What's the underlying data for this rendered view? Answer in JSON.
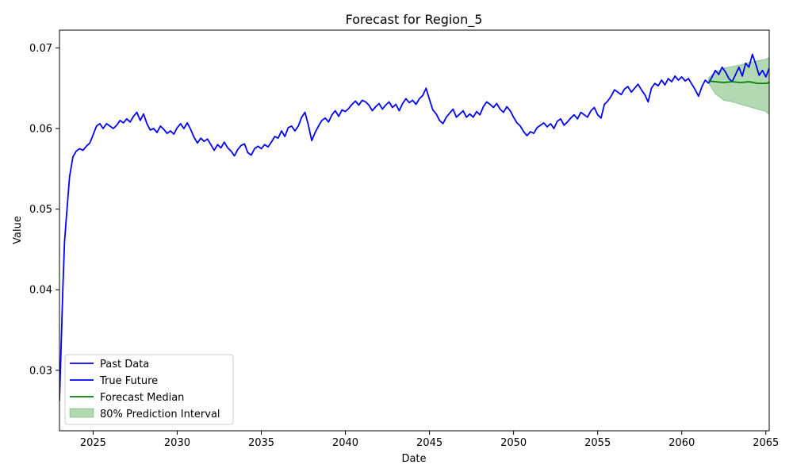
{
  "chart_data": {
    "type": "line",
    "title": "Forecast for Region_5",
    "xlabel": "Date",
    "ylabel": "Value",
    "xlim": [
      2023.0,
      2065.2
    ],
    "ylim": [
      0.0225,
      0.0722
    ],
    "x_ticks": [
      2025,
      2030,
      2035,
      2040,
      2045,
      2050,
      2055,
      2060,
      2065
    ],
    "y_ticks": [
      0.03,
      0.04,
      0.05,
      0.06,
      0.07
    ],
    "y_tick_labels": [
      "0.03",
      "0.04",
      "0.05",
      "0.06",
      "0.07"
    ],
    "legend_position": "lower-left",
    "series": [
      {
        "name": "Past Data",
        "color": "#0000ff",
        "style": "line",
        "points": [
          [
            2023.0,
            0.0262
          ],
          [
            2023.1,
            0.033
          ],
          [
            2023.2,
            0.04
          ],
          [
            2023.3,
            0.046
          ],
          [
            2023.45,
            0.05
          ],
          [
            2023.6,
            0.054
          ],
          [
            2023.8,
            0.0565
          ],
          [
            2024.0,
            0.0572
          ],
          [
            2024.2,
            0.0575
          ],
          [
            2024.4,
            0.0573
          ],
          [
            2024.6,
            0.0578
          ],
          [
            2024.8,
            0.0582
          ],
          [
            2025.0,
            0.0592
          ],
          [
            2025.2,
            0.0603
          ],
          [
            2025.4,
            0.0606
          ],
          [
            2025.6,
            0.06
          ],
          [
            2025.8,
            0.0606
          ],
          [
            2026.0,
            0.0603
          ],
          [
            2026.2,
            0.06
          ],
          [
            2026.4,
            0.0604
          ],
          [
            2026.6,
            0.061
          ],
          [
            2026.8,
            0.0607
          ],
          [
            2027.0,
            0.0612
          ],
          [
            2027.2,
            0.0608
          ],
          [
            2027.4,
            0.0615
          ],
          [
            2027.6,
            0.062
          ],
          [
            2027.8,
            0.061
          ],
          [
            2028.0,
            0.0618
          ],
          [
            2028.2,
            0.0606
          ],
          [
            2028.4,
            0.0598
          ],
          [
            2028.6,
            0.06
          ],
          [
            2028.8,
            0.0595
          ],
          [
            2029.0,
            0.0603
          ],
          [
            2029.2,
            0.0599
          ],
          [
            2029.4,
            0.0594
          ],
          [
            2029.6,
            0.0597
          ],
          [
            2029.8,
            0.0593
          ],
          [
            2030.0,
            0.0601
          ],
          [
            2030.2,
            0.0606
          ],
          [
            2030.4,
            0.06
          ],
          [
            2030.6,
            0.0607
          ],
          [
            2030.8,
            0.0599
          ],
          [
            2031.0,
            0.0589
          ],
          [
            2031.2,
            0.0582
          ],
          [
            2031.4,
            0.0588
          ],
          [
            2031.6,
            0.0584
          ],
          [
            2031.8,
            0.0587
          ],
          [
            2032.0,
            0.058
          ],
          [
            2032.2,
            0.0573
          ],
          [
            2032.4,
            0.058
          ],
          [
            2032.6,
            0.0576
          ],
          [
            2032.8,
            0.0583
          ],
          [
            2033.0,
            0.0576
          ],
          [
            2033.2,
            0.0572
          ],
          [
            2033.4,
            0.0566
          ],
          [
            2033.6,
            0.0574
          ],
          [
            2033.8,
            0.0579
          ],
          [
            2034.0,
            0.0581
          ],
          [
            2034.2,
            0.057
          ],
          [
            2034.4,
            0.0567
          ],
          [
            2034.6,
            0.0575
          ],
          [
            2034.8,
            0.0578
          ],
          [
            2035.0,
            0.0575
          ],
          [
            2035.2,
            0.058
          ],
          [
            2035.4,
            0.0577
          ],
          [
            2035.6,
            0.0583
          ],
          [
            2035.8,
            0.059
          ],
          [
            2036.0,
            0.0588
          ],
          [
            2036.2,
            0.0597
          ],
          [
            2036.4,
            0.059
          ],
          [
            2036.6,
            0.0601
          ],
          [
            2036.8,
            0.0603
          ],
          [
            2037.0,
            0.0597
          ],
          [
            2037.2,
            0.0603
          ],
          [
            2037.4,
            0.0614
          ],
          [
            2037.6,
            0.062
          ],
          [
            2037.8,
            0.0604
          ],
          [
            2038.0,
            0.0585
          ],
          [
            2038.2,
            0.0595
          ],
          [
            2038.4,
            0.0603
          ],
          [
            2038.6,
            0.061
          ],
          [
            2038.8,
            0.0613
          ],
          [
            2039.0,
            0.0608
          ],
          [
            2039.2,
            0.0617
          ],
          [
            2039.4,
            0.0622
          ],
          [
            2039.6,
            0.0615
          ],
          [
            2039.8,
            0.0623
          ],
          [
            2040.0,
            0.0621
          ],
          [
            2040.2,
            0.0625
          ],
          [
            2040.4,
            0.063
          ],
          [
            2040.6,
            0.0634
          ],
          [
            2040.8,
            0.0629
          ],
          [
            2041.0,
            0.0635
          ],
          [
            2041.2,
            0.0633
          ],
          [
            2041.4,
            0.0629
          ],
          [
            2041.6,
            0.0622
          ],
          [
            2041.8,
            0.0627
          ],
          [
            2042.0,
            0.0631
          ],
          [
            2042.2,
            0.0624
          ],
          [
            2042.4,
            0.0629
          ],
          [
            2042.6,
            0.0633
          ],
          [
            2042.8,
            0.0626
          ],
          [
            2043.0,
            0.063
          ],
          [
            2043.2,
            0.0622
          ],
          [
            2043.4,
            0.0631
          ],
          [
            2043.6,
            0.0637
          ],
          [
            2043.8,
            0.0632
          ],
          [
            2044.0,
            0.0635
          ],
          [
            2044.2,
            0.063
          ],
          [
            2044.4,
            0.0637
          ],
          [
            2044.6,
            0.0641
          ],
          [
            2044.8,
            0.065
          ],
          [
            2045.0,
            0.0636
          ],
          [
            2045.2,
            0.0623
          ],
          [
            2045.4,
            0.0618
          ],
          [
            2045.6,
            0.061
          ],
          [
            2045.8,
            0.0606
          ],
          [
            2046.0,
            0.0614
          ],
          [
            2046.2,
            0.0619
          ],
          [
            2046.4,
            0.0624
          ],
          [
            2046.6,
            0.0614
          ],
          [
            2046.8,
            0.0618
          ],
          [
            2047.0,
            0.0622
          ],
          [
            2047.2,
            0.0614
          ],
          [
            2047.4,
            0.0618
          ],
          [
            2047.6,
            0.0614
          ],
          [
            2047.8,
            0.0621
          ],
          [
            2048.0,
            0.0617
          ],
          [
            2048.2,
            0.0627
          ],
          [
            2048.4,
            0.0633
          ],
          [
            2048.6,
            0.063
          ],
          [
            2048.8,
            0.0626
          ],
          [
            2049.0,
            0.0631
          ],
          [
            2049.2,
            0.0624
          ],
          [
            2049.4,
            0.062
          ],
          [
            2049.6,
            0.0627
          ],
          [
            2049.8,
            0.0622
          ],
          [
            2050.0,
            0.0614
          ],
          [
            2050.2,
            0.0607
          ],
          [
            2050.4,
            0.0603
          ],
          [
            2050.6,
            0.0596
          ],
          [
            2050.8,
            0.0591
          ],
          [
            2051.0,
            0.0596
          ],
          [
            2051.2,
            0.0594
          ],
          [
            2051.4,
            0.0601
          ],
          [
            2051.6,
            0.0604
          ],
          [
            2051.8,
            0.0607
          ],
          [
            2052.0,
            0.0602
          ],
          [
            2052.2,
            0.0606
          ],
          [
            2052.4,
            0.06
          ],
          [
            2052.6,
            0.0609
          ],
          [
            2052.8,
            0.0612
          ],
          [
            2053.0,
            0.0604
          ],
          [
            2053.2,
            0.0608
          ],
          [
            2053.4,
            0.0613
          ],
          [
            2053.6,
            0.0617
          ],
          [
            2053.8,
            0.0612
          ],
          [
            2054.0,
            0.062
          ],
          [
            2054.2,
            0.0617
          ],
          [
            2054.4,
            0.0614
          ],
          [
            2054.6,
            0.0622
          ],
          [
            2054.8,
            0.0626
          ],
          [
            2055.0,
            0.0617
          ],
          [
            2055.2,
            0.0613
          ],
          [
            2055.4,
            0.063
          ],
          [
            2055.6,
            0.0634
          ],
          [
            2055.8,
            0.064
          ],
          [
            2056.0,
            0.0648
          ],
          [
            2056.2,
            0.0645
          ],
          [
            2056.4,
            0.0642
          ],
          [
            2056.6,
            0.0649
          ],
          [
            2056.8,
            0.0652
          ],
          [
            2057.0,
            0.0645
          ],
          [
            2057.2,
            0.065
          ],
          [
            2057.4,
            0.0655
          ],
          [
            2057.6,
            0.0648
          ],
          [
            2057.8,
            0.0642
          ],
          [
            2058.0,
            0.0633
          ],
          [
            2058.2,
            0.065
          ],
          [
            2058.4,
            0.0656
          ],
          [
            2058.6,
            0.0653
          ],
          [
            2058.8,
            0.066
          ],
          [
            2059.0,
            0.0654
          ],
          [
            2059.2,
            0.0662
          ],
          [
            2059.4,
            0.0658
          ],
          [
            2059.6,
            0.0665
          ],
          [
            2059.8,
            0.066
          ],
          [
            2060.0,
            0.0664
          ],
          [
            2060.2,
            0.0659
          ],
          [
            2060.4,
            0.0662
          ],
          [
            2060.6,
            0.0655
          ],
          [
            2060.8,
            0.0648
          ],
          [
            2061.0,
            0.064
          ],
          [
            2061.2,
            0.0652
          ],
          [
            2061.4,
            0.066
          ],
          [
            2061.6,
            0.0656
          ]
        ]
      },
      {
        "name": "True Future",
        "color": "#0000ff",
        "style": "line",
        "points": [
          [
            2061.6,
            0.0656
          ],
          [
            2061.8,
            0.0664
          ],
          [
            2062.0,
            0.0672
          ],
          [
            2062.2,
            0.0667
          ],
          [
            2062.4,
            0.0676
          ],
          [
            2062.6,
            0.067
          ],
          [
            2062.8,
            0.0662
          ],
          [
            2063.0,
            0.0658
          ],
          [
            2063.2,
            0.0667
          ],
          [
            2063.4,
            0.0676
          ],
          [
            2063.6,
            0.0665
          ],
          [
            2063.8,
            0.0681
          ],
          [
            2064.0,
            0.0676
          ],
          [
            2064.2,
            0.0692
          ],
          [
            2064.4,
            0.068
          ],
          [
            2064.6,
            0.0666
          ],
          [
            2064.8,
            0.0672
          ],
          [
            2065.0,
            0.0664
          ],
          [
            2065.2,
            0.0675
          ]
        ]
      },
      {
        "name": "Forecast Median",
        "color": "#008000",
        "style": "line",
        "points": [
          [
            2061.6,
            0.0659
          ],
          [
            2062.0,
            0.0658
          ],
          [
            2062.5,
            0.0657
          ],
          [
            2063.0,
            0.0658
          ],
          [
            2063.5,
            0.0657
          ],
          [
            2064.0,
            0.0658
          ],
          [
            2064.5,
            0.0656
          ],
          [
            2065.0,
            0.0656
          ],
          [
            2065.2,
            0.0657
          ]
        ]
      }
    ],
    "interval": {
      "name": "80% Prediction Interval",
      "color": "#008000",
      "opacity": 0.3,
      "x": [
        2061.6,
        2062.0,
        2062.5,
        2063.0,
        2063.5,
        2064.0,
        2064.5,
        2065.0,
        2065.2
      ],
      "lower": [
        0.0656,
        0.0643,
        0.0635,
        0.0633,
        0.063,
        0.0627,
        0.0624,
        0.0621,
        0.0617
      ],
      "upper": [
        0.0663,
        0.067,
        0.0675,
        0.0677,
        0.0679,
        0.0682,
        0.0684,
        0.0686,
        0.0688
      ]
    }
  }
}
